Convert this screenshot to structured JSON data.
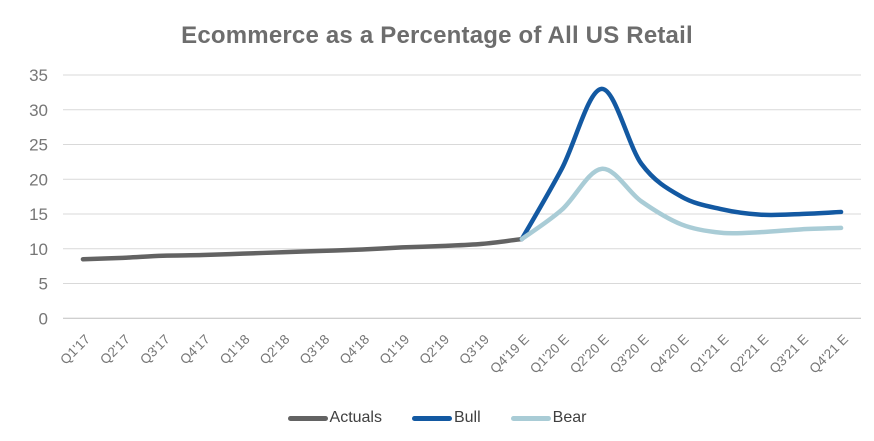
{
  "title": "Ecommerce as a Percentage of All US Retail",
  "chart_data": {
    "type": "line",
    "title": "Ecommerce as a Percentage of All US Retail",
    "categories": [
      "Q1'17",
      "Q2'17",
      "Q3'17",
      "Q4'17",
      "Q1'18",
      "Q2'18",
      "Q3'18",
      "Q4'18",
      "Q1'19",
      "Q2'19",
      "Q3'19",
      "Q4'19 E",
      "Q1'20 E",
      "Q2'20 E",
      "Q3'20 E",
      "Q4'20 E",
      "Q1'21 E",
      "Q2'21 E",
      "Q3'21 E",
      "Q4'21 E"
    ],
    "series": [
      {
        "name": "Actuals",
        "color": "#636363",
        "values": [
          8.5,
          8.7,
          9.0,
          9.1,
          9.3,
          9.5,
          9.7,
          9.9,
          10.2,
          10.4,
          10.7,
          11.4,
          null,
          null,
          null,
          null,
          null,
          null,
          null,
          null
        ]
      },
      {
        "name": "Bull",
        "color": "#1359A2",
        "values": [
          null,
          null,
          null,
          null,
          null,
          null,
          null,
          null,
          null,
          null,
          null,
          11.4,
          21.5,
          33,
          22.2,
          17.5,
          15.7,
          14.9,
          15.0,
          15.3
        ]
      },
      {
        "name": "Bear",
        "color": "#A9CCD6",
        "values": [
          null,
          null,
          null,
          null,
          null,
          null,
          null,
          null,
          null,
          null,
          null,
          11.4,
          15.6,
          21.5,
          16.8,
          13.5,
          12.3,
          12.4,
          12.8,
          13.0
        ]
      }
    ],
    "xlabel": "",
    "ylabel": "",
    "y_axis": {
      "min": 0,
      "max": 35,
      "step": 5,
      "tick_labels": [
        "0",
        "5",
        "10",
        "15",
        "20",
        "25",
        "30",
        "35"
      ]
    },
    "grid": "horizontal",
    "legend_position": "bottom"
  },
  "legend": {
    "items": [
      {
        "label": "Actuals",
        "color": "#636363"
      },
      {
        "label": "Bull",
        "color": "#1359A2"
      },
      {
        "label": "Bear",
        "color": "#A9CCD6"
      }
    ]
  },
  "colors": {
    "title_text": "#6d6d6d",
    "axis_tick_text": "#767676",
    "gridline": "#d9d9d9",
    "baseline": "#bfbfbf",
    "legend_text": "#404040",
    "background": "#ffffff"
  }
}
